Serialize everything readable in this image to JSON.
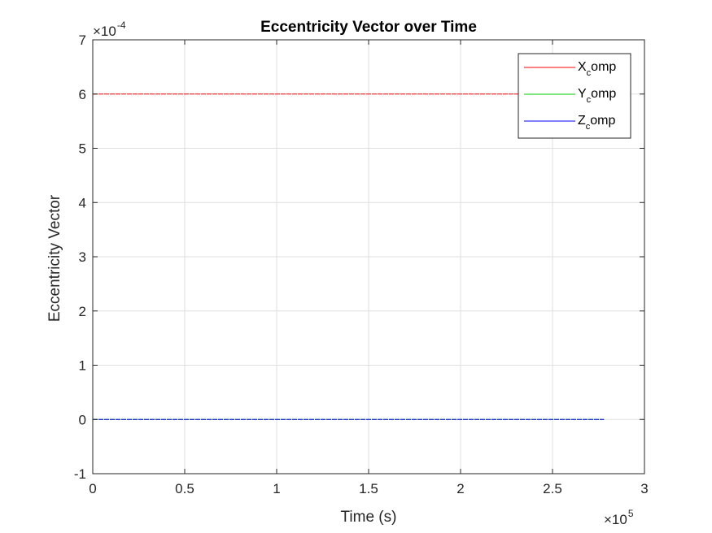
{
  "chart_data": {
    "type": "line",
    "title": "Eccentricity Vector over Time",
    "xlabel": "Time (s)",
    "ylabel": "Eccentricity Vector",
    "xlim": [
      0,
      300000
    ],
    "ylim": [
      -0.0001,
      0.0007
    ],
    "x_ticks": [
      0,
      0.5,
      1,
      1.5,
      2,
      2.5,
      3
    ],
    "x_ticklabels": [
      "0",
      "0.5",
      "1",
      "1.5",
      "2",
      "2.5",
      "3"
    ],
    "x_exponent": {
      "base": "×10",
      "power": "5"
    },
    "y_ticks": [
      -1,
      0,
      1,
      2,
      3,
      4,
      5,
      6,
      7
    ],
    "y_ticklabels": [
      "-1",
      "0",
      "1",
      "2",
      "3",
      "4",
      "5",
      "6",
      "7"
    ],
    "y_exponent": {
      "base": "×10",
      "power": "-4"
    },
    "grid": true,
    "legend_position": "top-right",
    "series": [
      {
        "name": "X_comp",
        "legend_main": "X",
        "legend_sub": "c",
        "legend_rest": "omp",
        "color": "#ff0000",
        "x": [
          0,
          278000
        ],
        "y": [
          0.0006,
          0.0006
        ]
      },
      {
        "name": "Y_comp",
        "legend_main": "Y",
        "legend_sub": "c",
        "legend_rest": "omp",
        "color": "#00cc00",
        "x": [
          0,
          278000
        ],
        "y": [
          0,
          0
        ]
      },
      {
        "name": "Z_comp",
        "legend_main": "Z",
        "legend_sub": "c",
        "legend_rest": "omp",
        "color": "#0000ff",
        "x": [
          0,
          278000
        ],
        "y": [
          0,
          0
        ]
      }
    ]
  }
}
